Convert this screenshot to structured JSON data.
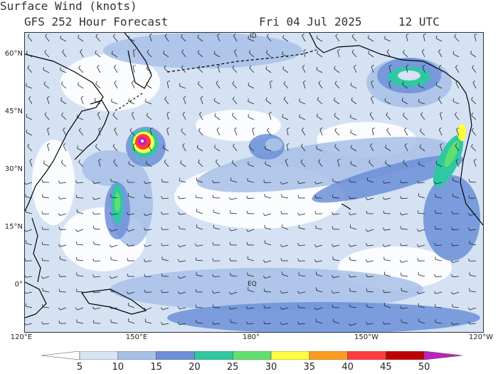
{
  "header": {
    "title": "Surface Wind (knots)",
    "subtitle": "GFS 252 Hour Forecast",
    "date": "Fri 04 Jul 2025",
    "time": "12 UTC"
  },
  "map": {
    "lat_labels": [
      "60°N",
      "45°N",
      "30°N",
      "15°N",
      "0°"
    ],
    "lon_labels": [
      "120°E",
      "150°E",
      "180°",
      "150°W",
      "120°W"
    ],
    "markers": {
      "dateline": "ID",
      "equator": "EQ"
    }
  },
  "legend": {
    "ticks": [
      "5",
      "10",
      "15",
      "20",
      "25",
      "30",
      "35",
      "40",
      "45",
      "50"
    ],
    "colors": [
      "#ffffff",
      "#d8e4f4",
      "#a8c0e8",
      "#6c90d8",
      "#30c8a0",
      "#60e070",
      "#ffff40",
      "#ff9c20",
      "#ff3c3c",
      "#c00000",
      "#c020c0"
    ]
  },
  "colors": {
    "calm": "#ffffff",
    "light": "#d4e2f4",
    "moderate": "#a8c0e8",
    "fresh": "#6c90d8",
    "strong": "#30c8a0",
    "gale": "#60e070",
    "storm": "#ffff40",
    "severe": "#ff3c3c",
    "extreme": "#c020c0",
    "coast": "#000000",
    "barb": "#222222"
  }
}
